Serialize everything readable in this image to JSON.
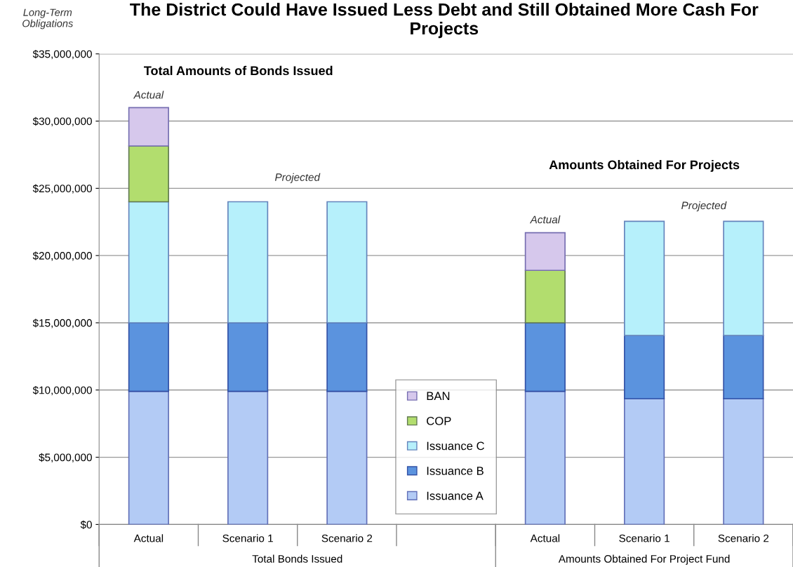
{
  "chart_data": {
    "type": "bar",
    "stacked": true,
    "title": "The District Could Have Issued Less Debt and Still Obtained More Cash For Projects",
    "ylabel": "Long-Term Obligations",
    "categories": [
      "Actual",
      "Scenario 1",
      "Scenario 2",
      null,
      "Actual",
      "Scenario 1",
      "Scenario 2"
    ],
    "series": [
      {
        "name": "Issuance A",
        "color": "#b3cbf5",
        "values": [
          9900000,
          9900000,
          9900000,
          null,
          9900000,
          9350000,
          9350000
        ]
      },
      {
        "name": "Issuance B",
        "color": "#5b93de",
        "values": [
          5100000,
          5100000,
          5100000,
          null,
          5100000,
          4700000,
          4700000
        ]
      },
      {
        "name": "Issuance C",
        "color": "#b6f0fb",
        "values": [
          9000000,
          9000000,
          9000000,
          null,
          null,
          8500000,
          8500000
        ]
      },
      {
        "name": "COP",
        "color": "#b2dd6e",
        "values": [
          4150000,
          null,
          null,
          null,
          3900000,
          null,
          null
        ]
      },
      {
        "name": "BAN",
        "color": "#d6c8ec",
        "values": [
          2850000,
          null,
          null,
          null,
          2800000,
          null,
          null
        ]
      }
    ],
    "ylim": [
      0,
      35000000
    ],
    "yticks": [
      {
        "value": 0,
        "label": "$0"
      },
      {
        "value": 5000000,
        "label": "$5,000,000"
      },
      {
        "value": 10000000,
        "label": "$10,000,000"
      },
      {
        "value": 15000000,
        "label": "$15,000,000"
      },
      {
        "value": 20000000,
        "label": "$20,000,000"
      },
      {
        "value": 25000000,
        "label": "$25,000,000"
      },
      {
        "value": 30000000,
        "label": "$30,000,000"
      },
      {
        "value": 35000000,
        "label": "$35,000,000"
      }
    ],
    "grid": "y",
    "legend": "bottom",
    "annotations": [
      "Total Amounts of Bonds Issued",
      "Actual",
      "Projected",
      "Amounts Obtained For Projects",
      "Actual",
      "Projected",
      "Total Bonds Issued",
      "Amounts Obtained For Project Fund"
    ]
  }
}
